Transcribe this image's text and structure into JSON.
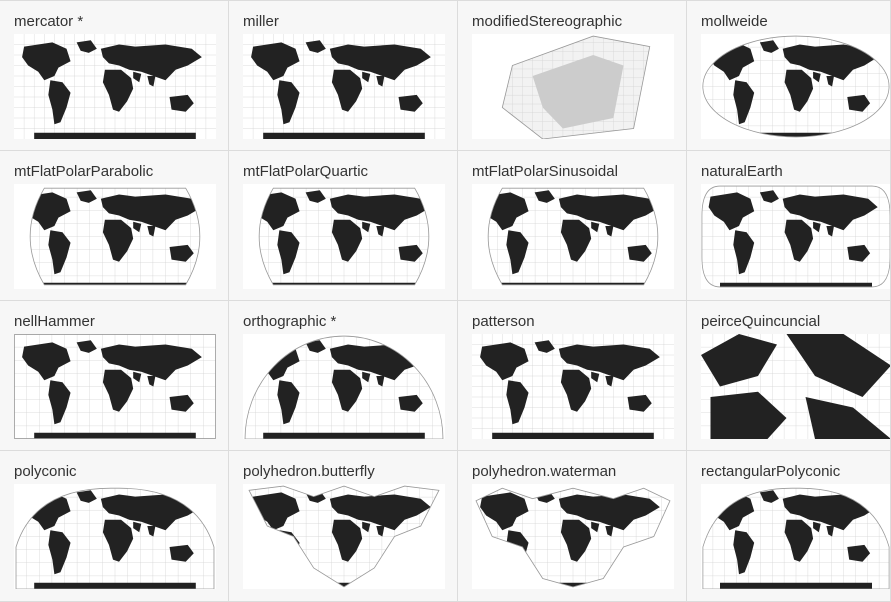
{
  "gallery": {
    "tiles": [
      {
        "label": "mercator *",
        "shape": "rect-full"
      },
      {
        "label": "miller",
        "shape": "rect-full"
      },
      {
        "label": "modifiedStereographic",
        "shape": "stereo"
      },
      {
        "label": "mollweide",
        "shape": "ellipse"
      },
      {
        "label": "mtFlatPolarParabolic",
        "shape": "flat-polar"
      },
      {
        "label": "mtFlatPolarQuartic",
        "shape": "flat-polar"
      },
      {
        "label": "mtFlatPolarSinusoidal",
        "shape": "flat-polar"
      },
      {
        "label": "naturalEarth",
        "shape": "rounded-rect"
      },
      {
        "label": "nellHammer",
        "shape": "rect-bordered"
      },
      {
        "label": "orthographic *",
        "shape": "globe"
      },
      {
        "label": "patterson",
        "shape": "rect-full"
      },
      {
        "label": "peirceQuincuncial",
        "shape": "quincuncial"
      },
      {
        "label": "polyconic",
        "shape": "polyconic"
      },
      {
        "label": "polyhedron.butterfly",
        "shape": "butterfly"
      },
      {
        "label": "polyhedron.waterman",
        "shape": "waterman"
      },
      {
        "label": "rectangularPolyconic",
        "shape": "polyconic"
      }
    ]
  },
  "colors": {
    "land": "#222222",
    "graticule": "#d4d4d4",
    "outline": "#999999",
    "tile_bg": "#f7f7f7",
    "thumb_bg": "#ffffff"
  }
}
